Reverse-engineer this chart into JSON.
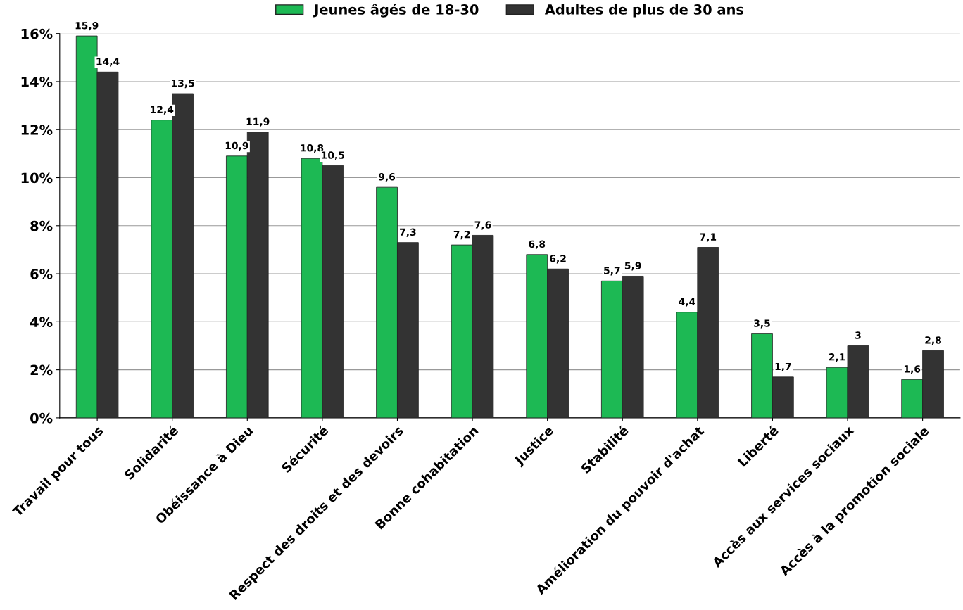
{
  "chart_data": {
    "type": "bar",
    "categories": [
      "Travail pour tous",
      "Solidarité",
      "Obéissance à Dieu",
      "Sécurité",
      "Respect des droits et des devoirs",
      "Bonne cohabitation",
      "Justice",
      "Stabilité",
      "Amélioration du pouvoir d'achat",
      "Liberté",
      "Accès aux services sociaux",
      "Accès à la promotion sociale"
    ],
    "series": [
      {
        "name": "Jeunes âgés de 18-30",
        "color": "#1db954",
        "values": [
          15.9,
          12.4,
          10.9,
          10.8,
          9.6,
          7.2,
          6.8,
          5.7,
          4.4,
          3.5,
          2.1,
          1.6
        ],
        "value_labels": [
          "15,9",
          "12,4",
          "10,9",
          "10,8",
          "9,6",
          "7,2",
          "6,8",
          "5,7",
          "4,4",
          "3,5",
          "2,1",
          "1,6"
        ]
      },
      {
        "name": "Adultes de plus de 30 ans",
        "color": "#333333",
        "values": [
          14.4,
          13.5,
          11.9,
          10.5,
          7.3,
          7.6,
          6.2,
          5.9,
          7.1,
          1.7,
          3,
          2.8
        ],
        "value_labels": [
          "14,4",
          "13,5",
          "11,9",
          "10,5",
          "7,3",
          "7,6",
          "6,2",
          "5,9",
          "7,1",
          "1,7",
          "3",
          "2,8"
        ]
      }
    ],
    "ylim": [
      0,
      16
    ],
    "yticks": [
      {
        "value": 0,
        "label": "0%"
      },
      {
        "value": 2,
        "label": "2%"
      },
      {
        "value": 4,
        "label": "4%"
      },
      {
        "value": 6,
        "label": "6%"
      },
      {
        "value": 8,
        "label": "8%"
      },
      {
        "value": 10,
        "label": "10%"
      },
      {
        "value": 12,
        "label": "12%"
      },
      {
        "value": 14,
        "label": "14%"
      },
      {
        "value": 16,
        "label": "16%"
      }
    ],
    "grid": "y",
    "legend": "top"
  }
}
